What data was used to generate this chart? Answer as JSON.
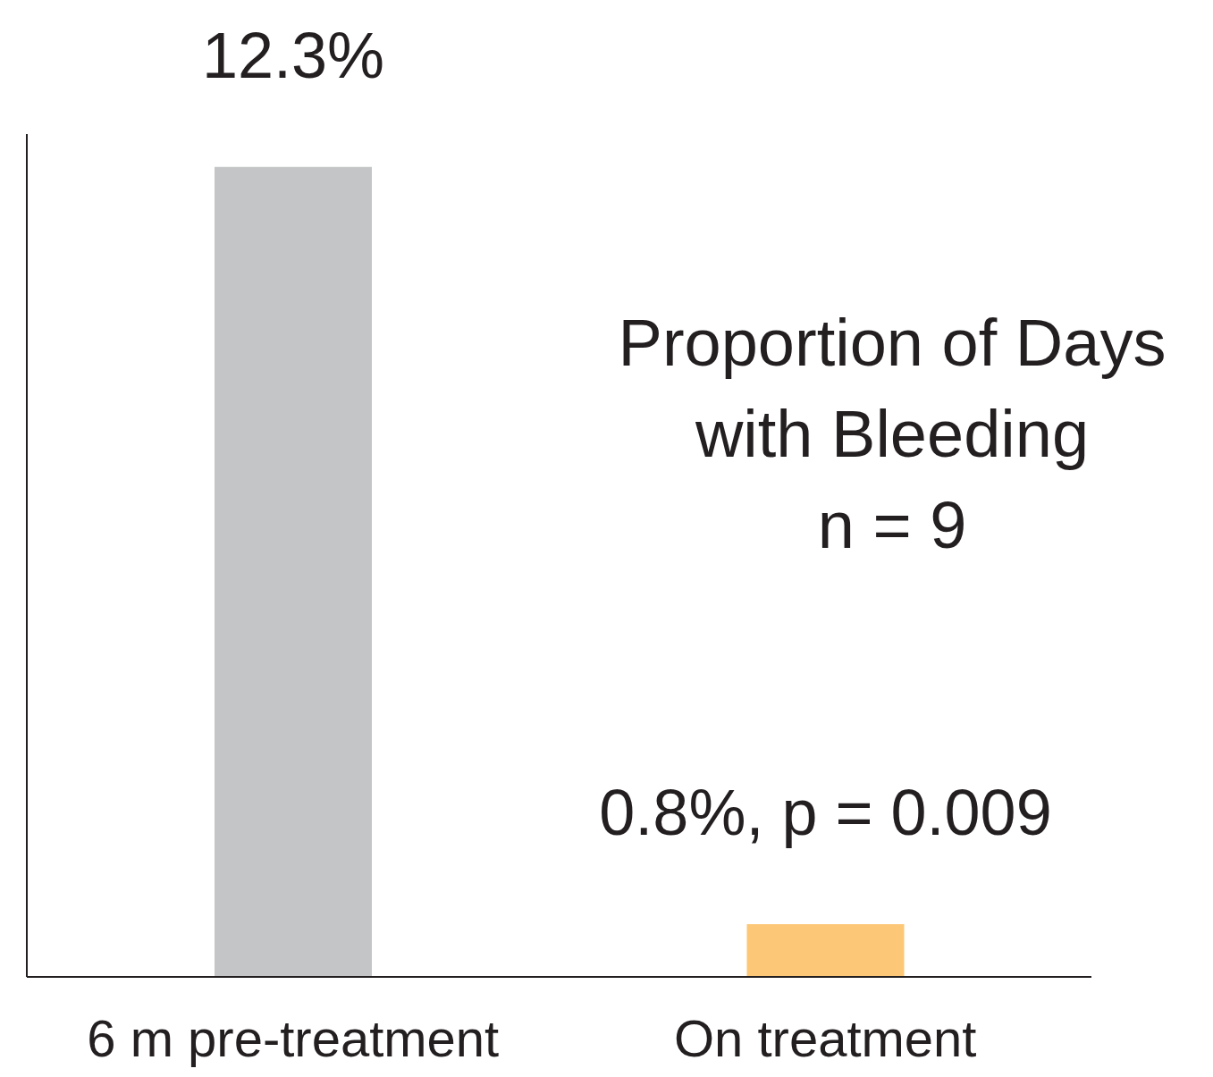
{
  "chart_data": {
    "type": "bar",
    "title": "Proportion of Days\nwith Bleeding",
    "subtitle": "n = 9",
    "categories": [
      "6 m pre-treatment",
      "On treatment"
    ],
    "values": [
      12.3,
      0.8
    ],
    "colors": [
      "#c4c5c7",
      "#fcc776"
    ],
    "value_labels": [
      "12.3%",
      "0.8%, p = 0.009"
    ],
    "ylim": [
      0,
      12.8
    ],
    "tick_labels": "x"
  }
}
